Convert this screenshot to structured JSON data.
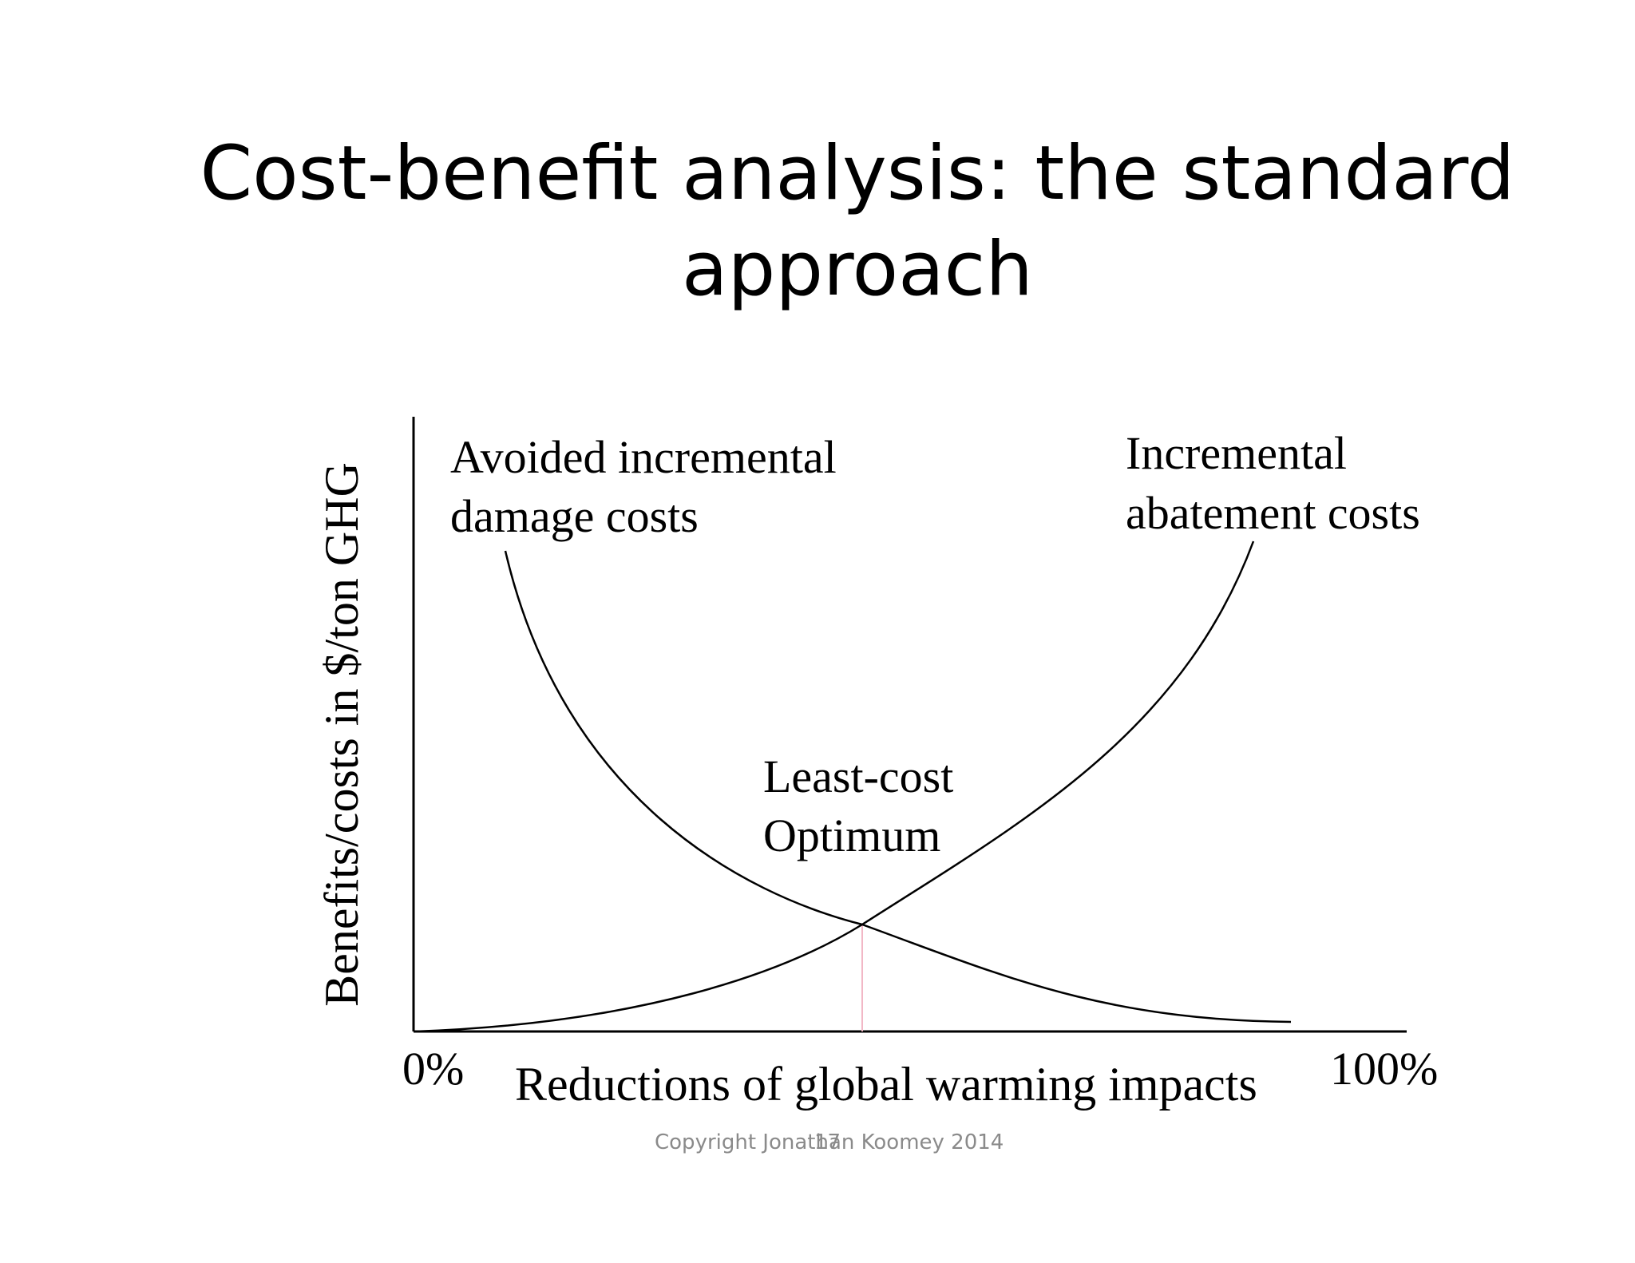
{
  "slide": {
    "title_line1": "Cost-benefit analysis:  the standard",
    "title_line2": "approach",
    "copyright": "Copyright Jonathan Koomey 2014",
    "page_number": "17"
  },
  "diagram": {
    "y_axis_label": "Benefits/costs in $/ton GHG",
    "x_axis_label": "Reductions of global warming impacts",
    "x_min_label": "0%",
    "x_max_label": "100%",
    "damage_curve_label_line1": "Avoided incremental",
    "damage_curve_label_line2": "damage costs",
    "abatement_curve_label_line1": "Incremental",
    "abatement_curve_label_line2": "abatement costs",
    "optimum_label_line1": "Least-cost",
    "optimum_label_line2": "Optimum",
    "colors": {
      "curves": "#000000",
      "optimum_marker": "#f2b8c6",
      "footer_text": "#8a8a8a"
    }
  }
}
